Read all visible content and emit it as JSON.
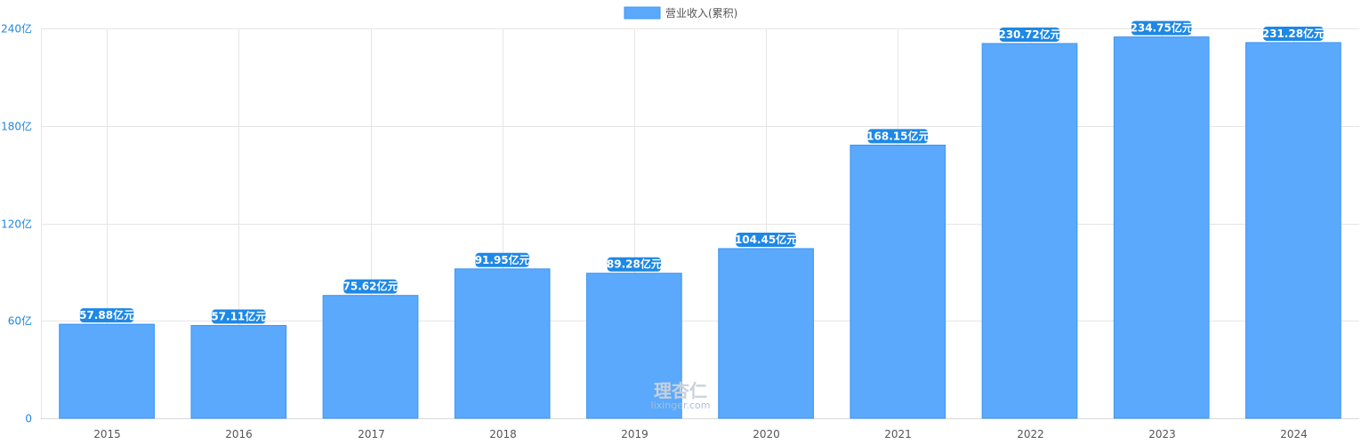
{
  "chart_data": {
    "type": "bar",
    "legend": {
      "label": "营业收入(累积)",
      "position": "top-center"
    },
    "categories": [
      "2015",
      "2016",
      "2017",
      "2018",
      "2019",
      "2020",
      "2021",
      "2022",
      "2023",
      "2024"
    ],
    "series": [
      {
        "name": "营业收入(累积)",
        "values": [
          57.88,
          57.11,
          75.62,
          91.95,
          89.28,
          104.45,
          168.15,
          230.72,
          234.75,
          231.28
        ],
        "data_labels": [
          "57.88亿元",
          "57.11亿元",
          "75.62亿元",
          "91.95亿元",
          "89.28亿元",
          "104.45亿元",
          "168.15亿元",
          "230.72亿元",
          "234.75亿元",
          "231.28亿元"
        ]
      }
    ],
    "ylim": [
      0,
      240
    ],
    "yticks": [
      0,
      60,
      120,
      180,
      240
    ],
    "ytick_labels": [
      "0",
      "60亿",
      "120亿",
      "180亿",
      "240亿"
    ],
    "grid": true,
    "colors": {
      "bar": "#5aa9fd",
      "bar_border": "#3d95f5",
      "label_bg": "#1e88e5",
      "ytick": "#1e88e5"
    }
  },
  "watermark": {
    "text_cn": "理杏仁",
    "text_en": "lixinger.com"
  }
}
